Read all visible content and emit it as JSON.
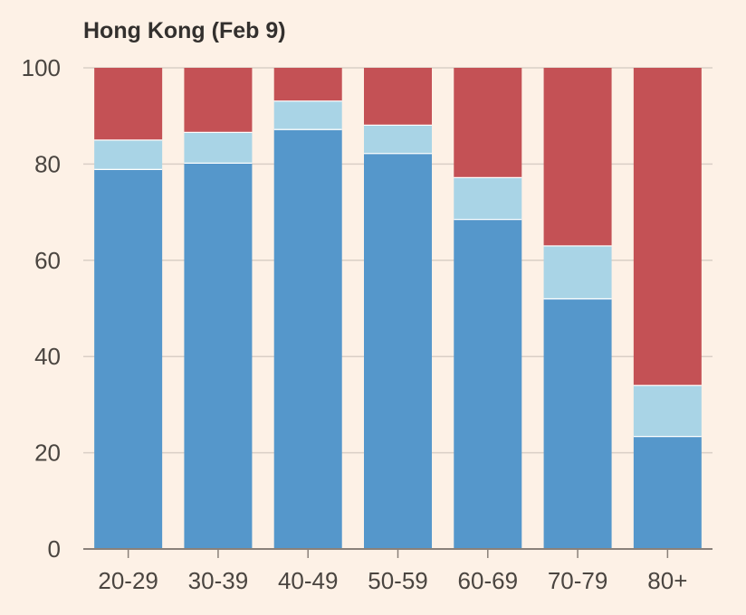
{
  "chart_data": {
    "type": "bar",
    "stacked": true,
    "title": "Hong Kong (Feb 9)",
    "xlabel": "",
    "ylabel": "",
    "ylim": [
      0,
      100
    ],
    "yticks": [
      0,
      20,
      40,
      60,
      80,
      100
    ],
    "grid": true,
    "categories": [
      "20-29",
      "30-39",
      "40-49",
      "50-59",
      "60-69",
      "70-79",
      "80+"
    ],
    "series": [
      {
        "color": "#5597cb",
        "values": [
          79,
          80.3,
          87.3,
          82.3,
          68.6,
          52.1,
          23.5
        ]
      },
      {
        "color": "#a9d4e6",
        "values": [
          6.1,
          6.4,
          5.9,
          5.9,
          8.7,
          11.0,
          10.6
        ]
      },
      {
        "color": "#c45155",
        "values": [
          14.9,
          13.3,
          6.8,
          11.8,
          22.7,
          36.9,
          65.9
        ]
      }
    ],
    "colors": {
      "background": "#fdf1e6",
      "grid": "#d9cfc6",
      "axis": "#8a817a",
      "text": "#4a4540"
    }
  }
}
